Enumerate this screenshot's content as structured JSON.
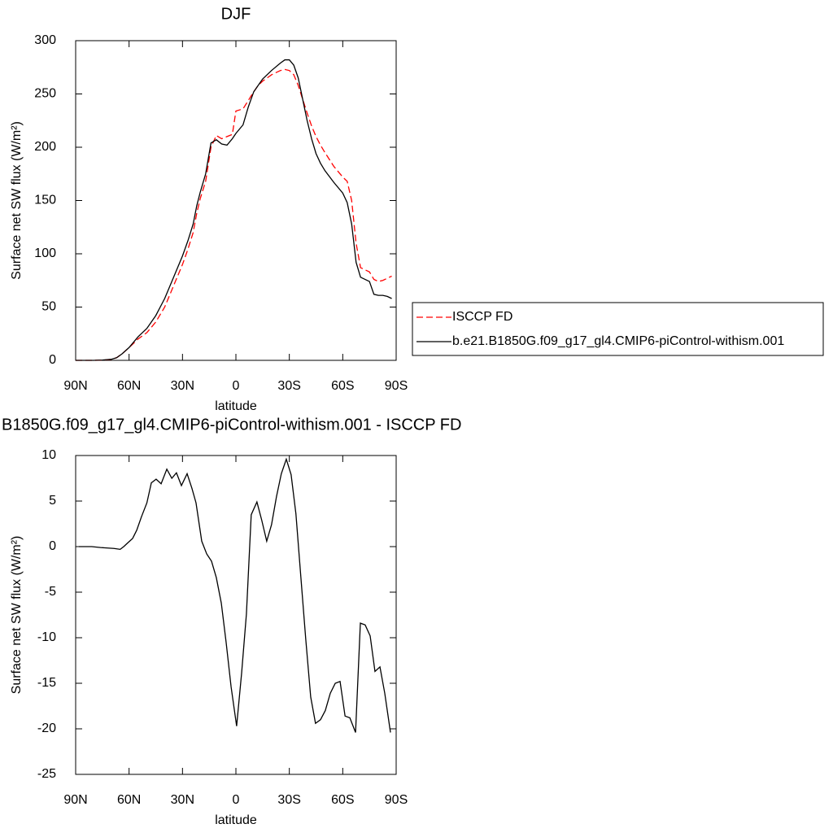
{
  "chart_data": [
    {
      "type": "line",
      "title": "DJF",
      "xlabel": "latitude",
      "ylabel": "Surface net SW flux (W/m²)",
      "xlim": [
        90,
        -90
      ],
      "xticks": [
        {
          "value": 90,
          "label": "90N"
        },
        {
          "value": 60,
          "label": "60N"
        },
        {
          "value": 30,
          "label": "30N"
        },
        0,
        {
          "value": -30,
          "label": "30S"
        },
        {
          "value": -60,
          "label": "60S"
        },
        {
          "value": -90,
          "label": "90S"
        }
      ],
      "ylim": [
        0,
        300
      ],
      "yticks": [
        0,
        50,
        100,
        150,
        200,
        250,
        300
      ],
      "legend": "right",
      "x": [
        90,
        85,
        80,
        75,
        70,
        67,
        64,
        60,
        55,
        50,
        45,
        40,
        35,
        30,
        27,
        24,
        22,
        20,
        17,
        14,
        11,
        8,
        5,
        2,
        0,
        -4,
        -7,
        -10,
        -12.5,
        -15,
        -20,
        -25,
        -27.5,
        -30,
        -32.5,
        -35,
        -37.5,
        -40,
        -42.5,
        -45,
        -47.5,
        -50,
        -55,
        -60,
        -62.5,
        -65,
        -67.5,
        -70,
        -72.5,
        -75,
        -77.5,
        -80,
        -82.5,
        -85,
        -87.5
      ],
      "series": [
        {
          "name": "ISCCP FD",
          "color": "#ff0000",
          "style": "dashed",
          "values": [
            0,
            0,
            0,
            0.2,
            0.8,
            2.5,
            6,
            12,
            20,
            26,
            36,
            50,
            70,
            90,
            104,
            120,
            138,
            152,
            168,
            200,
            211,
            208,
            210,
            212,
            234,
            236,
            244,
            252,
            258,
            262,
            268,
            272,
            273,
            272,
            268,
            258,
            245,
            232,
            220,
            210,
            202,
            195,
            182,
            172,
            168,
            150,
            110,
            87,
            85,
            83,
            76,
            74,
            75,
            77,
            79
          ]
        },
        {
          "name": "b.e21.B1850G.f09_g17_gl4.CMIP6-piControl-withism.001",
          "color": "#000000",
          "style": "solid",
          "values": [
            0,
            0,
            0,
            0.3,
            1,
            2.5,
            6,
            12,
            22,
            30,
            42,
            58,
            78,
            98,
            112,
            128,
            145,
            158,
            175,
            204,
            207,
            203,
            202,
            208,
            213,
            221,
            238,
            252,
            258,
            264,
            272,
            279,
            282,
            282,
            277,
            265,
            245,
            225,
            208,
            194,
            185,
            178,
            167,
            157,
            148,
            128,
            92,
            78,
            76,
            74,
            62,
            61,
            61,
            60,
            58
          ]
        }
      ]
    },
    {
      "type": "line",
      "title": "B1850G.f09_g17_gl4.CMIP6-piControl-withism.001 - ISCCP FD",
      "xlabel": "latitude",
      "ylabel": "Surface net SW flux (W/m²)",
      "xlim": [
        90,
        -90
      ],
      "xticks": [
        {
          "value": 90,
          "label": "90N"
        },
        {
          "value": 60,
          "label": "60N"
        },
        {
          "value": 30,
          "label": "30N"
        },
        0,
        {
          "value": -30,
          "label": "30S"
        },
        {
          "value": -60,
          "label": "60S"
        },
        {
          "value": -90,
          "label": "90S"
        }
      ],
      "ylim": [
        -25,
        10
      ],
      "yticks": [
        -25,
        -20,
        -15,
        -10,
        -5,
        0,
        5,
        10
      ],
      "color": "#000000",
      "x": [
        88.2,
        81,
        76,
        68.5,
        65,
        63,
        60.8,
        58,
        55.7,
        53,
        50,
        47.5,
        44.8,
        42,
        38.8,
        36,
        33.4,
        30.6,
        27.4,
        24.7,
        22.4,
        19.2,
        16.4,
        13.7,
        11,
        8.2,
        5.5,
        2.7,
        -0.4,
        -3.2,
        -5.9,
        -8.6,
        -11.8,
        -14.5,
        -17.3,
        -20,
        -22.8,
        -25.5,
        -28.3,
        -31,
        -33.7,
        -36.5,
        -39.2,
        -42,
        -44.7,
        -47.5,
        -50.2,
        -53,
        -55.8,
        -58.5,
        -61.3,
        -64,
        -67.2,
        -69.9,
        -72.6,
        -75.4,
        -78.1,
        -80.9,
        -83.6,
        -86.8
      ],
      "values": [
        0,
        0,
        -0.1,
        -0.2,
        -0.3,
        0,
        0.4,
        0.9,
        1.8,
        3.3,
        4.8,
        7.0,
        7.4,
        6.9,
        8.5,
        7.5,
        8.1,
        6.7,
        8.0,
        6.4,
        4.8,
        0.6,
        -0.8,
        -1.6,
        -3.4,
        -6.2,
        -10.5,
        -15.4,
        -19.7,
        -13.9,
        -7.4,
        3.5,
        4.9,
        2.9,
        0.6,
        2.4,
        5.5,
        8.0,
        9.6,
        7.9,
        3.6,
        -3.4,
        -10.1,
        -16.5,
        -19.4,
        -19.0,
        -18.0,
        -16.1,
        -15.0,
        -14.8,
        -18.6,
        -18.8,
        -20.4,
        -8.4,
        -8.6,
        -9.8,
        -13.7,
        -13.2,
        -16.1,
        -20.4
      ]
    }
  ]
}
